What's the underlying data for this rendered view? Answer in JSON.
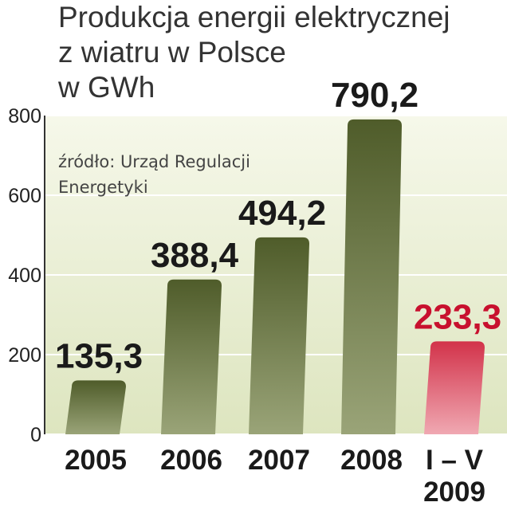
{
  "chart_data": {
    "type": "bar",
    "title": [
      "Produkcja energii elektrycznej",
      "z wiatru w Polsce",
      "w GWh"
    ],
    "source": [
      "źródło: Urząd Regulacji",
      "Energetyki"
    ],
    "categories": [
      [
        "2005"
      ],
      [
        "2006"
      ],
      [
        "2007"
      ],
      [
        "2008"
      ],
      [
        "I – V",
        "2009"
      ]
    ],
    "values": [
      135.3,
      388.4,
      494.2,
      790.2,
      233.3
    ],
    "value_labels": [
      "135,3",
      "388,4",
      "494,2",
      "790,2",
      "233,3"
    ],
    "ylim": [
      0,
      800
    ],
    "yticks": [
      0,
      200,
      400,
      600,
      800
    ],
    "grid": true,
    "colors": {
      "bar": "#4f5c2a",
      "bar_fade": "#9aa478",
      "highlight": "#d2334a",
      "highlight_fade": "#f0a8b2",
      "value_label": "#1a1a1a",
      "highlight_label": "#c8102e",
      "background_top": "#f6f8ea",
      "background_bottom": "#dde5bf"
    }
  }
}
